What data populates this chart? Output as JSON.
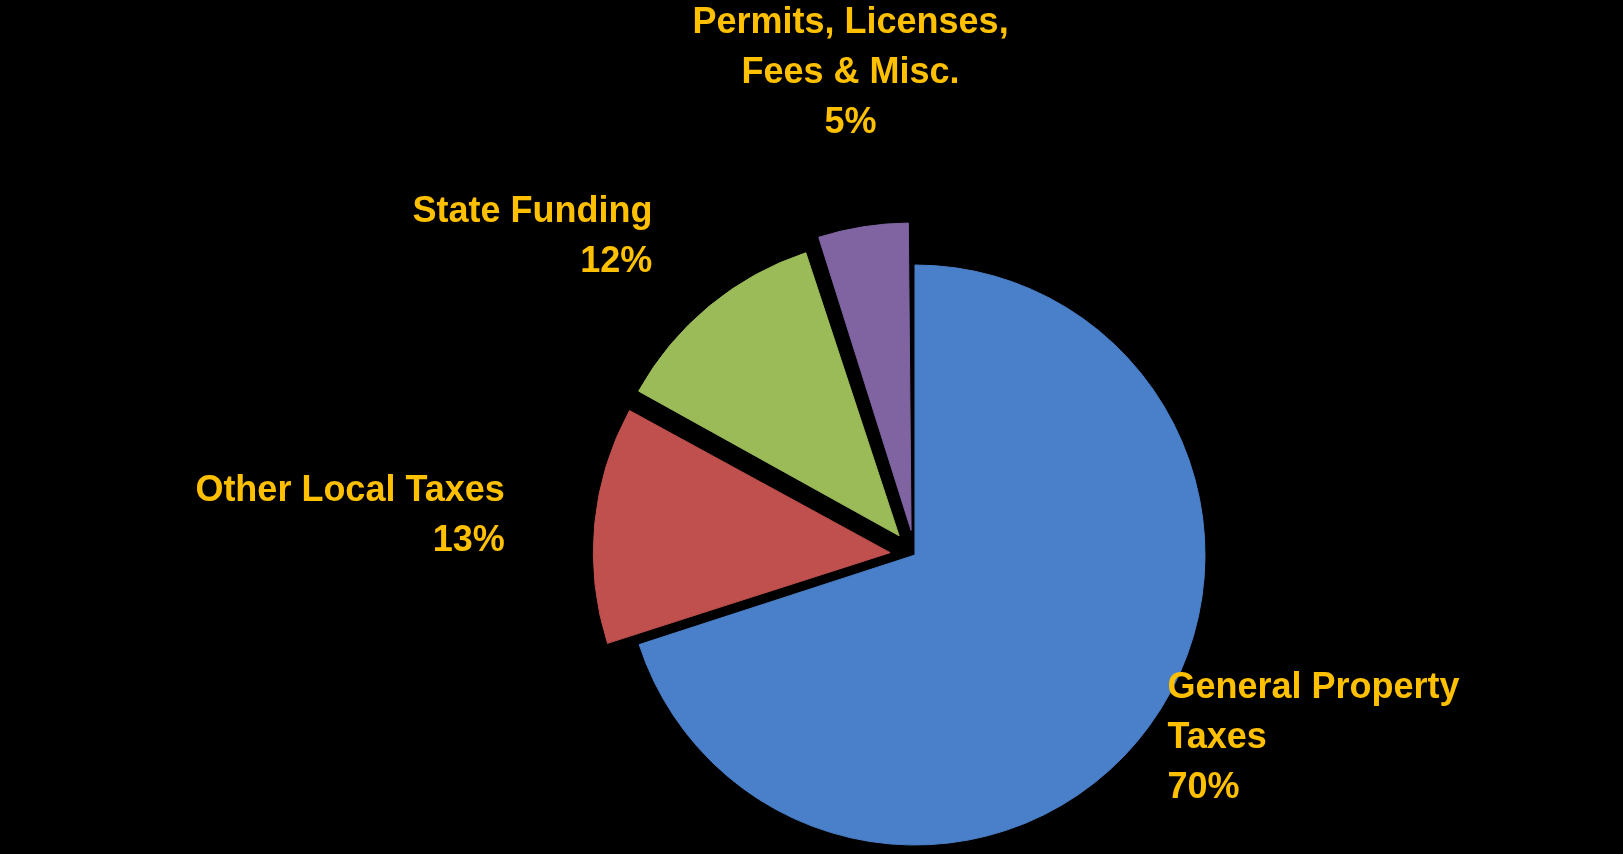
{
  "chart_data": {
    "type": "pie",
    "categories": [
      "General Property Taxes",
      "Other Local Taxes",
      "State Funding",
      "Permits, Licenses, Fees & Misc."
    ],
    "values": [
      70,
      13,
      12,
      5
    ],
    "value_labels": [
      "70%",
      "13%",
      "12%",
      "5%"
    ],
    "colors": [
      "#4a80c9",
      "#c0504d",
      "#9bbb59",
      "#8064a2"
    ],
    "legend": false
  }
}
